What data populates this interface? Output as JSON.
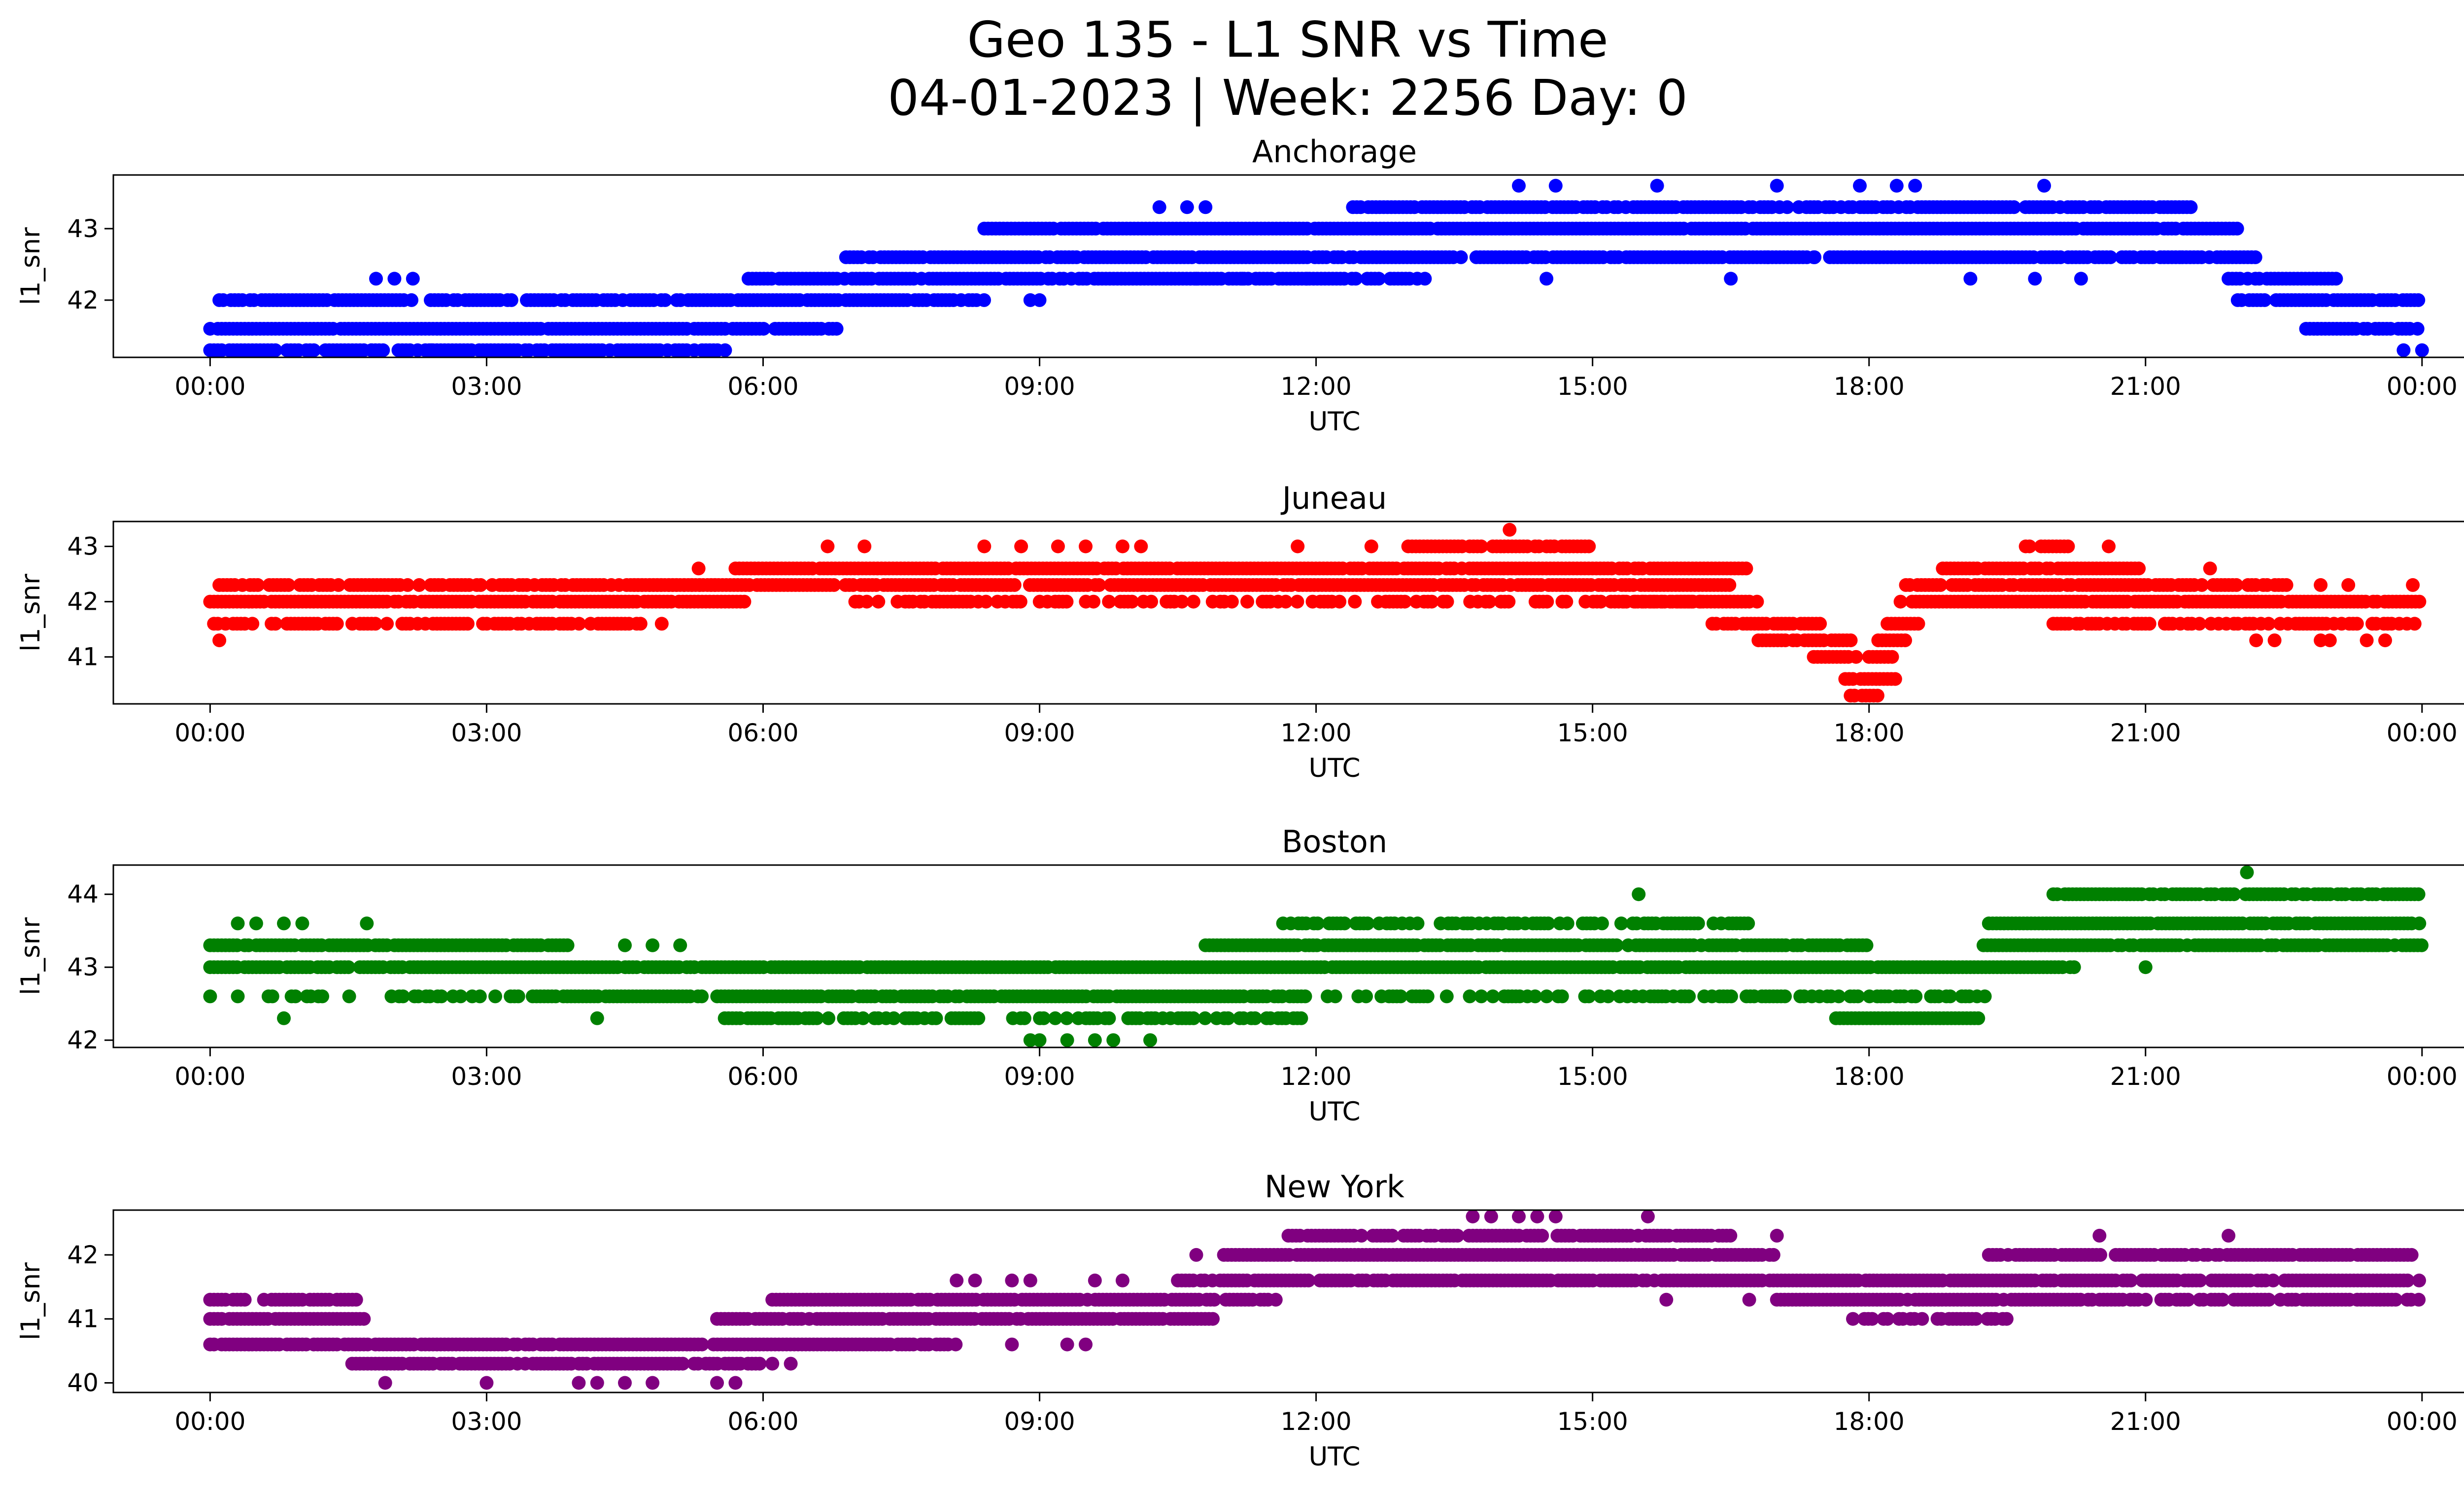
{
  "figure": {
    "title_line1": "Geo 135 - L1 SNR vs Time",
    "title_line2": "04-01-2023 | Week: 2256 Day: 0"
  },
  "chart_data": [
    {
      "type": "scatter",
      "title": "Anchorage",
      "xlabel": "UTC",
      "ylabel": "l1_snr",
      "color": "#0000ff",
      "x_unit": "hours UTC",
      "xlim": [
        -1.05,
        25.45
      ],
      "ylim": [
        41.2,
        43.75
      ],
      "xticks": [
        "00:00",
        "03:00",
        "06:00",
        "09:00",
        "12:00",
        "15:00",
        "18:00",
        "21:00",
        "00:00"
      ],
      "yticks": [
        42,
        43
      ],
      "levels": [
        41.3,
        41.6,
        42.0,
        42.3,
        42.6,
        43.0,
        43.3,
        43.6
      ],
      "bands": [
        {
          "y": 41.3,
          "start": 0.0,
          "end": 5.6,
          "density": 0.8
        },
        {
          "y": 41.6,
          "start": 0.0,
          "end": 6.8,
          "density": 0.95
        },
        {
          "y": 42.0,
          "start": 0.1,
          "end": 8.4,
          "density": 0.85
        },
        {
          "y": 42.3,
          "start": 5.8,
          "end": 13.2,
          "density": 0.9
        },
        {
          "y": 42.6,
          "start": 6.9,
          "end": 21.4,
          "density": 0.9
        },
        {
          "y": 43.0,
          "start": 8.4,
          "end": 22.0,
          "density": 0.95
        },
        {
          "y": 43.3,
          "start": 12.4,
          "end": 21.5,
          "density": 0.85
        },
        {
          "y": 42.6,
          "start": 21.4,
          "end": 22.2,
          "density": 0.9
        },
        {
          "y": 42.3,
          "start": 21.9,
          "end": 23.1,
          "density": 0.9
        },
        {
          "y": 42.0,
          "start": 22.0,
          "end": 24.0,
          "density": 0.9
        },
        {
          "y": 41.6,
          "start": 22.7,
          "end": 24.0,
          "density": 0.6
        }
      ],
      "points": [
        [
          1.8,
          42.3
        ],
        [
          2.0,
          42.3
        ],
        [
          2.2,
          42.3
        ],
        [
          1.75,
          41.3
        ],
        [
          2.4,
          41.3
        ],
        [
          9.0,
          42.0
        ],
        [
          8.9,
          42.0
        ],
        [
          10.3,
          43.3
        ],
        [
          10.6,
          43.3
        ],
        [
          10.8,
          43.3
        ],
        [
          10.7,
          42.3
        ],
        [
          11.2,
          42.3
        ],
        [
          11.9,
          42.3
        ],
        [
          13.1,
          42.3
        ],
        [
          14.2,
          43.6
        ],
        [
          14.6,
          43.6
        ],
        [
          15.7,
          43.6
        ],
        [
          17.0,
          43.6
        ],
        [
          17.9,
          43.6
        ],
        [
          18.3,
          43.6
        ],
        [
          18.5,
          43.6
        ],
        [
          19.9,
          43.6
        ],
        [
          14.5,
          42.3
        ],
        [
          16.5,
          42.3
        ],
        [
          19.1,
          42.3
        ],
        [
          19.8,
          42.3
        ],
        [
          20.3,
          42.3
        ],
        [
          23.8,
          41.3
        ],
        [
          24.0,
          41.3
        ],
        [
          16.9,
          42.6
        ],
        [
          17.4,
          42.6
        ]
      ]
    },
    {
      "type": "scatter",
      "title": "Juneau",
      "xlabel": "UTC",
      "ylabel": "l1_snr",
      "color": "#ff0000",
      "x_unit": "hours UTC",
      "xlim": [
        -1.05,
        25.45
      ],
      "ylim": [
        40.15,
        43.45
      ],
      "xticks": [
        "00:00",
        "03:00",
        "06:00",
        "09:00",
        "12:00",
        "15:00",
        "18:00",
        "21:00",
        "00:00"
      ],
      "yticks": [
        41,
        42,
        43
      ],
      "levels": [
        40.3,
        40.6,
        41.0,
        41.3,
        41.6,
        42.0,
        42.3,
        42.6,
        43.0,
        43.3
      ],
      "bands": [
        {
          "y": 41.6,
          "start": 0.0,
          "end": 4.7,
          "density": 0.7
        },
        {
          "y": 42.0,
          "start": 0.0,
          "end": 5.8,
          "density": 0.95
        },
        {
          "y": 42.3,
          "start": 0.1,
          "end": 5.5,
          "density": 0.8
        },
        {
          "y": 42.3,
          "start": 4.6,
          "end": 16.5,
          "density": 0.9
        },
        {
          "y": 42.6,
          "start": 5.7,
          "end": 16.7,
          "density": 0.95
        },
        {
          "y": 43.0,
          "start": 13.0,
          "end": 15.0,
          "density": 0.9
        },
        {
          "y": 42.0,
          "start": 7.0,
          "end": 16.2,
          "density": 0.5
        },
        {
          "y": 42.0,
          "start": 15.2,
          "end": 16.9,
          "density": 0.9
        },
        {
          "y": 41.6,
          "start": 16.3,
          "end": 17.5,
          "density": 0.9
        },
        {
          "y": 41.3,
          "start": 16.8,
          "end": 17.9,
          "density": 0.9
        },
        {
          "y": 41.0,
          "start": 17.4,
          "end": 17.9,
          "density": 0.9
        },
        {
          "y": 40.6,
          "start": 17.7,
          "end": 18.3,
          "density": 0.9
        },
        {
          "y": 40.3,
          "start": 17.8,
          "end": 18.1,
          "density": 0.9
        },
        {
          "y": 41.0,
          "start": 18.0,
          "end": 18.3,
          "density": 0.9
        },
        {
          "y": 41.3,
          "start": 18.1,
          "end": 18.4,
          "density": 0.9
        },
        {
          "y": 41.6,
          "start": 18.2,
          "end": 18.6,
          "density": 0.9
        },
        {
          "y": 42.0,
          "start": 18.3,
          "end": 24.0,
          "density": 0.9
        },
        {
          "y": 42.3,
          "start": 18.4,
          "end": 22.6,
          "density": 0.85
        },
        {
          "y": 42.6,
          "start": 18.8,
          "end": 21.0,
          "density": 0.85
        },
        {
          "y": 41.6,
          "start": 20.0,
          "end": 24.0,
          "density": 0.6
        },
        {
          "y": 43.0,
          "start": 19.7,
          "end": 20.2,
          "density": 0.9
        }
      ],
      "points": [
        [
          0.1,
          41.3
        ],
        [
          14.1,
          43.3
        ],
        [
          6.7,
          43.0
        ],
        [
          7.1,
          43.0
        ],
        [
          8.4,
          43.0
        ],
        [
          8.8,
          43.0
        ],
        [
          9.2,
          43.0
        ],
        [
          9.5,
          43.0
        ],
        [
          9.9,
          43.0
        ],
        [
          10.1,
          43.0
        ],
        [
          11.8,
          43.0
        ],
        [
          12.6,
          43.0
        ],
        [
          20.6,
          43.0
        ],
        [
          21.7,
          42.6
        ],
        [
          4.9,
          41.6
        ],
        [
          5.3,
          42.6
        ],
        [
          22.2,
          41.3
        ],
        [
          22.4,
          41.3
        ],
        [
          22.9,
          41.3
        ],
        [
          23.0,
          41.3
        ],
        [
          23.4,
          41.3
        ],
        [
          23.6,
          41.3
        ],
        [
          23.9,
          42.3
        ],
        [
          22.9,
          42.3
        ],
        [
          23.2,
          42.3
        ]
      ]
    },
    {
      "type": "scatter",
      "title": "Boston",
      "xlabel": "UTC",
      "ylabel": "l1_snr",
      "color": "#008000",
      "x_unit": "hours UTC",
      "xlim": [
        -1.05,
        25.45
      ],
      "ylim": [
        41.9,
        44.4
      ],
      "xticks": [
        "00:00",
        "03:00",
        "06:00",
        "09:00",
        "12:00",
        "15:00",
        "18:00",
        "21:00",
        "00:00"
      ],
      "yticks": [
        42,
        43,
        44
      ],
      "levels": [
        42.0,
        42.3,
        42.6,
        43.0,
        43.3,
        43.6,
        44.0,
        44.3
      ],
      "bands": [
        {
          "y": 43.0,
          "start": 0.0,
          "end": 20.3,
          "density": 0.95
        },
        {
          "y": 43.3,
          "start": 0.0,
          "end": 3.9,
          "density": 0.9
        },
        {
          "y": 42.6,
          "start": 3.5,
          "end": 11.9,
          "density": 0.9
        },
        {
          "y": 42.6,
          "start": 0.3,
          "end": 3.4,
          "density": 0.4
        },
        {
          "y": 42.3,
          "start": 5.5,
          "end": 11.9,
          "density": 0.6
        },
        {
          "y": 43.3,
          "start": 10.8,
          "end": 18.0,
          "density": 0.9
        },
        {
          "y": 43.6,
          "start": 11.6,
          "end": 16.7,
          "density": 0.6
        },
        {
          "y": 42.6,
          "start": 12.0,
          "end": 19.3,
          "density": 0.5
        },
        {
          "y": 42.3,
          "start": 17.6,
          "end": 19.2,
          "density": 0.9
        },
        {
          "y": 43.3,
          "start": 19.2,
          "end": 24.0,
          "density": 0.9
        },
        {
          "y": 43.6,
          "start": 19.3,
          "end": 24.0,
          "density": 0.95
        },
        {
          "y": 44.0,
          "start": 20.0,
          "end": 24.0,
          "density": 0.85
        }
      ],
      "points": [
        [
          0.0,
          42.6
        ],
        [
          0.3,
          43.6
        ],
        [
          0.5,
          43.6
        ],
        [
          0.8,
          43.6
        ],
        [
          1.0,
          43.6
        ],
        [
          1.7,
          43.6
        ],
        [
          0.8,
          42.3
        ],
        [
          4.2,
          42.3
        ],
        [
          15.5,
          44.0
        ],
        [
          21.0,
          43.0
        ],
        [
          22.1,
          44.3
        ],
        [
          8.9,
          42.0
        ],
        [
          9.0,
          42.0
        ],
        [
          9.3,
          42.0
        ],
        [
          9.6,
          42.0
        ],
        [
          9.8,
          42.0
        ],
        [
          10.2,
          42.0
        ],
        [
          4.5,
          43.3
        ],
        [
          4.8,
          43.3
        ],
        [
          5.1,
          43.3
        ]
      ]
    },
    {
      "type": "scatter",
      "title": "New York",
      "xlabel": "UTC",
      "ylabel": "l1_snr",
      "color": "#800080",
      "x_unit": "hours UTC",
      "xlim": [
        -1.05,
        25.45
      ],
      "ylim": [
        39.85,
        42.7
      ],
      "xticks": [
        "00:00",
        "03:00",
        "06:00",
        "09:00",
        "12:00",
        "15:00",
        "18:00",
        "21:00",
        "00:00"
      ],
      "yticks": [
        40,
        41,
        42
      ],
      "levels": [
        40.0,
        40.3,
        40.6,
        41.0,
        41.3,
        41.6,
        42.0,
        42.3,
        42.6
      ],
      "bands": [
        {
          "y": 40.6,
          "start": 0.0,
          "end": 8.1,
          "density": 0.95
        },
        {
          "y": 41.0,
          "start": 0.0,
          "end": 1.7,
          "density": 0.9
        },
        {
          "y": 41.3,
          "start": 0.0,
          "end": 1.6,
          "density": 0.8
        },
        {
          "y": 40.3,
          "start": 1.5,
          "end": 6.0,
          "density": 0.9
        },
        {
          "y": 41.0,
          "start": 5.5,
          "end": 10.9,
          "density": 0.9
        },
        {
          "y": 41.3,
          "start": 6.1,
          "end": 11.6,
          "density": 0.9
        },
        {
          "y": 41.6,
          "start": 10.5,
          "end": 24.0,
          "density": 0.9
        },
        {
          "y": 42.0,
          "start": 11.0,
          "end": 17.0,
          "density": 0.95
        },
        {
          "y": 42.3,
          "start": 11.7,
          "end": 16.5,
          "density": 0.85
        },
        {
          "y": 41.3,
          "start": 17.0,
          "end": 24.0,
          "density": 0.85
        },
        {
          "y": 42.0,
          "start": 19.3,
          "end": 23.9,
          "density": 0.9
        },
        {
          "y": 41.0,
          "start": 17.7,
          "end": 19.5,
          "density": 0.5
        }
      ],
      "points": [
        [
          1.9,
          40.0
        ],
        [
          3.0,
          40.0
        ],
        [
          4.0,
          40.0
        ],
        [
          4.2,
          40.0
        ],
        [
          4.5,
          40.0
        ],
        [
          4.8,
          40.0
        ],
        [
          5.5,
          40.0
        ],
        [
          5.7,
          40.0
        ],
        [
          6.1,
          40.3
        ],
        [
          6.3,
          40.3
        ],
        [
          13.7,
          42.6
        ],
        [
          13.9,
          42.6
        ],
        [
          14.2,
          42.6
        ],
        [
          14.4,
          42.6
        ],
        [
          14.6,
          42.6
        ],
        [
          15.6,
          42.6
        ],
        [
          20.5,
          42.3
        ],
        [
          21.9,
          42.3
        ],
        [
          8.1,
          41.6
        ],
        [
          8.3,
          41.6
        ],
        [
          8.7,
          41.6
        ],
        [
          8.9,
          41.6
        ],
        [
          9.6,
          41.6
        ],
        [
          9.9,
          41.6
        ],
        [
          10.7,
          42.0
        ],
        [
          17.0,
          42.3
        ],
        [
          15.8,
          41.3
        ],
        [
          16.7,
          41.3
        ],
        [
          8.7,
          40.6
        ],
        [
          9.3,
          40.6
        ],
        [
          9.5,
          40.6
        ]
      ]
    }
  ]
}
